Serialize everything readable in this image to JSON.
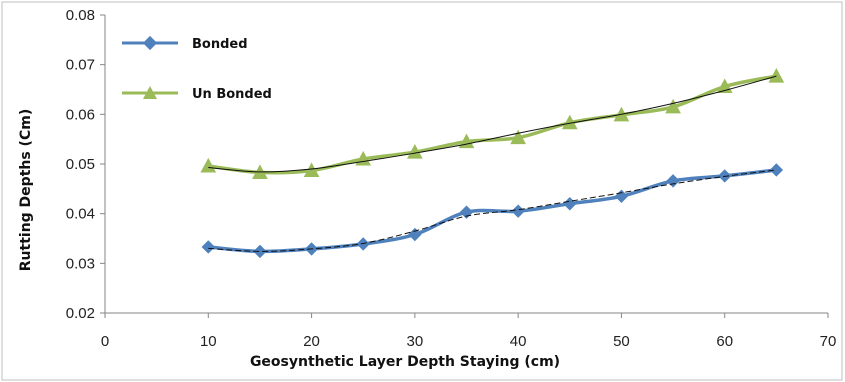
{
  "chart_data": {
    "type": "line",
    "xlabel": "Geosynthetic Layer Depth  Staying (cm)",
    "ylabel": "Rutting Depths (Cm)",
    "xlim": [
      0,
      70
    ],
    "ylim": [
      0.02,
      0.08
    ],
    "x_ticks": [
      "0",
      "10",
      "20",
      "30",
      "40",
      "50",
      "60",
      "70"
    ],
    "y_ticks": [
      "0.02",
      "0.03",
      "0.04",
      "0.05",
      "0.06",
      "0.07",
      "0.08"
    ],
    "grid": false,
    "legend_position": "top-left",
    "x": [
      10,
      15,
      20,
      25,
      30,
      35,
      40,
      45,
      50,
      55,
      60,
      65
    ],
    "series": [
      {
        "name": "Bonded",
        "marker": "diamond",
        "color": "#4f81bd",
        "values": [
          0.0333,
          0.0324,
          0.0329,
          0.0339,
          0.0358,
          0.0403,
          0.0405,
          0.042,
          0.0435,
          0.0466,
          0.0476,
          0.0488
        ]
      },
      {
        "name": "Un Bonded",
        "marker": "triangle",
        "color": "#9bbb59",
        "values": [
          0.0496,
          0.0483,
          0.0487,
          0.051,
          0.0524,
          0.0545,
          0.0553,
          0.0583,
          0.0599,
          0.0615,
          0.0656,
          0.0677
        ]
      }
    ],
    "trendlines": [
      {
        "style": "dashed",
        "color": "#111111",
        "values": [
          0.033,
          0.0324,
          0.0329,
          0.034,
          0.0365,
          0.0395,
          0.0408,
          0.0425,
          0.0442,
          0.046,
          0.0475,
          0.0488
        ]
      },
      {
        "style": "solid",
        "color": "#111111",
        "values": [
          0.0493,
          0.0484,
          0.049,
          0.0505,
          0.0522,
          0.054,
          0.0562,
          0.0582,
          0.06,
          0.0622,
          0.0648,
          0.0677
        ]
      }
    ]
  }
}
